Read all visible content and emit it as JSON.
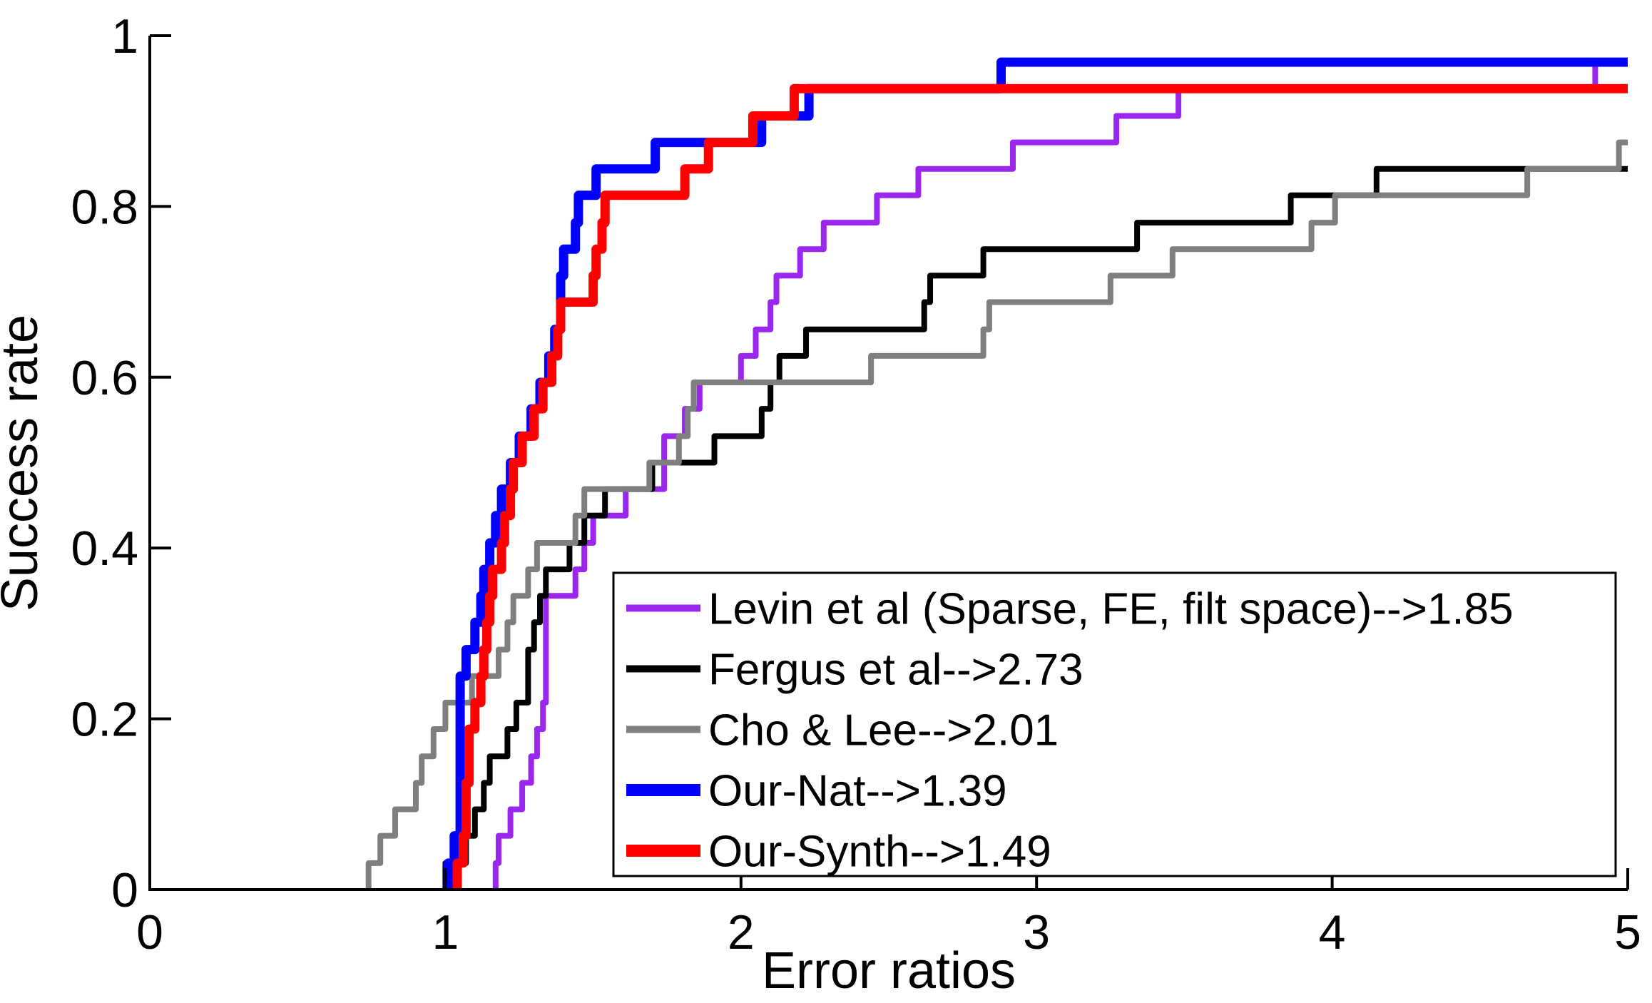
{
  "figure": {
    "background": "#ffffff",
    "axis_color": "#000000"
  },
  "chart_data": {
    "type": "line",
    "subtype": "step-cdf",
    "title": "",
    "xlabel": "Error ratios",
    "ylabel": "Success rate",
    "xlim": [
      0,
      5
    ],
    "ylim": [
      0,
      1
    ],
    "x_ticks": [
      0,
      1,
      2,
      3,
      4,
      5
    ],
    "x_tick_labels": [
      "0",
      "1",
      "2",
      "3",
      "4",
      "5"
    ],
    "y_ticks": [
      0,
      0.2,
      0.4,
      0.6,
      0.8,
      1
    ],
    "y_tick_labels": [
      "0",
      "0.2",
      "0.4",
      "0.6",
      "0.8",
      "1"
    ],
    "grid": false,
    "legend_position": "inside-lower-right",
    "series": [
      {
        "name": "levin",
        "label": "Levin et al (Sparse, FE, filt space)-->1.85",
        "color": "#9B26EE",
        "thickness": "thin",
        "steps": [
          [
            1.17,
            0.031
          ],
          [
            1.18,
            0.063
          ],
          [
            1.22,
            0.094
          ],
          [
            1.26,
            0.125
          ],
          [
            1.29,
            0.156
          ],
          [
            1.31,
            0.188
          ],
          [
            1.33,
            0.219
          ],
          [
            1.34,
            0.344
          ],
          [
            1.44,
            0.375
          ],
          [
            1.47,
            0.406
          ],
          [
            1.5,
            0.438
          ],
          [
            1.61,
            0.469
          ],
          [
            1.74,
            0.531
          ],
          [
            1.81,
            0.563
          ],
          [
            1.86,
            0.594
          ],
          [
            2.0,
            0.625
          ],
          [
            2.05,
            0.656
          ],
          [
            2.1,
            0.688
          ],
          [
            2.12,
            0.719
          ],
          [
            2.2,
            0.75
          ],
          [
            2.28,
            0.781
          ],
          [
            2.46,
            0.813
          ],
          [
            2.6,
            0.844
          ],
          [
            2.92,
            0.875
          ],
          [
            3.27,
            0.906
          ],
          [
            3.48,
            0.938
          ],
          [
            4.89,
            0.969
          ]
        ]
      },
      {
        "name": "fergus",
        "label": "Fergus et al-->2.73",
        "color": "#000000",
        "thickness": "thin",
        "steps": [
          [
            1.0,
            0.031
          ],
          [
            1.07,
            0.063
          ],
          [
            1.1,
            0.094
          ],
          [
            1.13,
            0.125
          ],
          [
            1.15,
            0.156
          ],
          [
            1.21,
            0.188
          ],
          [
            1.24,
            0.219
          ],
          [
            1.28,
            0.281
          ],
          [
            1.3,
            0.313
          ],
          [
            1.32,
            0.344
          ],
          [
            1.34,
            0.375
          ],
          [
            1.42,
            0.406
          ],
          [
            1.47,
            0.438
          ],
          [
            1.54,
            0.469
          ],
          [
            1.7,
            0.5
          ],
          [
            1.91,
            0.531
          ],
          [
            2.07,
            0.563
          ],
          [
            2.1,
            0.594
          ],
          [
            2.13,
            0.625
          ],
          [
            2.22,
            0.656
          ],
          [
            2.62,
            0.688
          ],
          [
            2.64,
            0.719
          ],
          [
            2.82,
            0.75
          ],
          [
            3.34,
            0.781
          ],
          [
            3.86,
            0.813
          ],
          [
            4.15,
            0.844
          ]
        ]
      },
      {
        "name": "cho-lee",
        "label": "Cho & Lee-->2.01",
        "color": "#7F7F7F",
        "thickness": "thin",
        "steps": [
          [
            0.74,
            0.031
          ],
          [
            0.78,
            0.063
          ],
          [
            0.83,
            0.094
          ],
          [
            0.9,
            0.125
          ],
          [
            0.92,
            0.156
          ],
          [
            0.96,
            0.188
          ],
          [
            1.0,
            0.219
          ],
          [
            1.09,
            0.25
          ],
          [
            1.18,
            0.281
          ],
          [
            1.21,
            0.313
          ],
          [
            1.23,
            0.344
          ],
          [
            1.28,
            0.375
          ],
          [
            1.31,
            0.406
          ],
          [
            1.44,
            0.438
          ],
          [
            1.47,
            0.469
          ],
          [
            1.69,
            0.5
          ],
          [
            1.79,
            0.531
          ],
          [
            1.82,
            0.563
          ],
          [
            1.84,
            0.594
          ],
          [
            2.44,
            0.625
          ],
          [
            2.82,
            0.656
          ],
          [
            2.84,
            0.688
          ],
          [
            3.25,
            0.719
          ],
          [
            3.46,
            0.75
          ],
          [
            3.93,
            0.781
          ],
          [
            4.01,
            0.813
          ],
          [
            4.66,
            0.844
          ],
          [
            4.97,
            0.875
          ]
        ]
      },
      {
        "name": "our-nat",
        "label": "Our-Nat-->1.39",
        "color": "#0000FF",
        "thickness": "thick",
        "steps": [
          [
            1.01,
            0.031
          ],
          [
            1.03,
            0.063
          ],
          [
            1.05,
            0.25
          ],
          [
            1.07,
            0.281
          ],
          [
            1.1,
            0.313
          ],
          [
            1.12,
            0.344
          ],
          [
            1.13,
            0.375
          ],
          [
            1.15,
            0.406
          ],
          [
            1.17,
            0.438
          ],
          [
            1.19,
            0.469
          ],
          [
            1.22,
            0.5
          ],
          [
            1.25,
            0.531
          ],
          [
            1.29,
            0.563
          ],
          [
            1.32,
            0.594
          ],
          [
            1.35,
            0.625
          ],
          [
            1.37,
            0.656
          ],
          [
            1.39,
            0.719
          ],
          [
            1.4,
            0.75
          ],
          [
            1.44,
            0.781
          ],
          [
            1.45,
            0.813
          ],
          [
            1.51,
            0.844
          ],
          [
            1.71,
            0.875
          ],
          [
            2.07,
            0.906
          ],
          [
            2.23,
            0.938
          ],
          [
            2.88,
            0.969
          ]
        ]
      },
      {
        "name": "our-synth",
        "label": "Our-Synth-->1.49",
        "color": "#FF0000",
        "thickness": "thick",
        "steps": [
          [
            1.04,
            0.031
          ],
          [
            1.06,
            0.063
          ],
          [
            1.07,
            0.125
          ],
          [
            1.08,
            0.188
          ],
          [
            1.1,
            0.219
          ],
          [
            1.12,
            0.25
          ],
          [
            1.13,
            0.281
          ],
          [
            1.14,
            0.313
          ],
          [
            1.15,
            0.344
          ],
          [
            1.16,
            0.375
          ],
          [
            1.19,
            0.406
          ],
          [
            1.2,
            0.438
          ],
          [
            1.22,
            0.469
          ],
          [
            1.23,
            0.5
          ],
          [
            1.26,
            0.531
          ],
          [
            1.3,
            0.563
          ],
          [
            1.33,
            0.594
          ],
          [
            1.36,
            0.625
          ],
          [
            1.38,
            0.656
          ],
          [
            1.39,
            0.688
          ],
          [
            1.5,
            0.719
          ],
          [
            1.51,
            0.75
          ],
          [
            1.53,
            0.781
          ],
          [
            1.54,
            0.813
          ],
          [
            1.81,
            0.844
          ],
          [
            1.89,
            0.875
          ],
          [
            2.04,
            0.906
          ],
          [
            2.18,
            0.938
          ]
        ]
      }
    ]
  }
}
